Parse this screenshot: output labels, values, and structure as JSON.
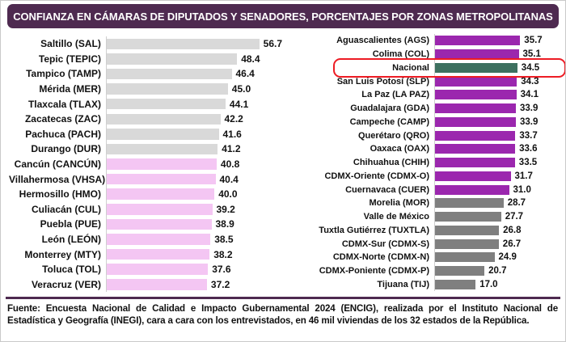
{
  "title": "CONFIANZA EN CÁMARAS DE DIPUTADOS Y SENADORES, PORCENTAJES POR ZONAS METROPOLITANAS",
  "footer": "Fuente: Encuesta Nacional de Calidad e Impacto Gubernamental 2024 (ENCIG), realizada por el Instituto Nacional de Estadística y Geografía (INEGI), cara a cara con los entrevistados, en 46 mil viviendas de los 32 estados de la República.",
  "colors": {
    "title_bg": "#4E2A50",
    "separator": "#4E2A50",
    "purple": "#9B27AE",
    "teal": "#3E705F",
    "light_gray": "#D9D9D9",
    "dark_gray": "#7F7F7F",
    "pink": "#F4C6F3",
    "highlight_red": "#ED1C24"
  },
  "chart_data": {
    "type": "bar",
    "orientation": "horizontal",
    "title": "CONFIANZA EN CÁMARAS DE DIPUTADOS Y SENADORES, PORCENTAJES POR ZONAS METROPOLITANAS",
    "value_unit": "percent",
    "xlim": [
      0,
      60
    ],
    "highlighted_category": "Nacional",
    "panels": [
      {
        "id": "left",
        "items": [
          {
            "label": "Saltillo (SAL)",
            "value": 56.7,
            "color": "light_gray"
          },
          {
            "label": "Tepic (TEPIC)",
            "value": 48.4,
            "color": "light_gray"
          },
          {
            "label": "Tampico (TAMP)",
            "value": 46.4,
            "color": "light_gray"
          },
          {
            "label": "Mérida (MER)",
            "value": 45.0,
            "color": "light_gray"
          },
          {
            "label": "Tlaxcala (TLAX)",
            "value": 44.1,
            "color": "light_gray"
          },
          {
            "label": "Zacatecas (ZAC)",
            "value": 42.2,
            "color": "light_gray"
          },
          {
            "label": "Pachuca (PACH)",
            "value": 41.6,
            "color": "light_gray"
          },
          {
            "label": "Durango (DUR)",
            "value": 41.2,
            "color": "light_gray"
          },
          {
            "label": "Cancún (CANCÚN)",
            "value": 40.8,
            "color": "pink"
          },
          {
            "label": "Villahermosa (VHSA)",
            "value": 40.4,
            "color": "pink"
          },
          {
            "label": "Hermosillo (HMO)",
            "value": 40.0,
            "color": "pink"
          },
          {
            "label": "Culiacán (CUL)",
            "value": 39.2,
            "color": "pink"
          },
          {
            "label": "Puebla (PUE)",
            "value": 38.9,
            "color": "pink"
          },
          {
            "label": "León (LEÓN)",
            "value": 38.5,
            "color": "pink"
          },
          {
            "label": "Monterrey (MTY)",
            "value": 38.2,
            "color": "pink"
          },
          {
            "label": "Toluca (TOL)",
            "value": 37.6,
            "color": "pink"
          },
          {
            "label": "Veracruz (VER)",
            "value": 37.2,
            "color": "pink"
          }
        ]
      },
      {
        "id": "right",
        "items": [
          {
            "label": "Aguascalientes (AGS)",
            "value": 35.7,
            "color": "purple"
          },
          {
            "label": "Colima (COL)",
            "value": 35.1,
            "color": "purple"
          },
          {
            "label": "Nacional",
            "value": 34.5,
            "color": "teal",
            "highlighted": true
          },
          {
            "label": "San Luis Potosí (SLP)",
            "value": 34.3,
            "color": "purple"
          },
          {
            "label": "La Paz (LA PAZ)",
            "value": 34.1,
            "color": "purple"
          },
          {
            "label": "Guadalajara (GDA)",
            "value": 33.9,
            "color": "purple"
          },
          {
            "label": "Campeche (CAMP)",
            "value": 33.9,
            "color": "purple"
          },
          {
            "label": "Querétaro (QRO)",
            "value": 33.7,
            "color": "purple"
          },
          {
            "label": "Oaxaca (OAX)",
            "value": 33.6,
            "color": "purple"
          },
          {
            "label": "Chihuahua (CHIH)",
            "value": 33.5,
            "color": "purple"
          },
          {
            "label": "CDMX-Oriente (CDMX-O)",
            "value": 31.7,
            "color": "purple"
          },
          {
            "label": "Cuernavaca (CUER)",
            "value": 31.0,
            "color": "purple"
          },
          {
            "label": "Morelia (MOR)",
            "value": 28.7,
            "color": "dark_gray"
          },
          {
            "label": "Valle de México",
            "value": 27.7,
            "color": "dark_gray"
          },
          {
            "label": "Tuxtla Gutiérrez (TUXTLA)",
            "value": 26.8,
            "color": "dark_gray"
          },
          {
            "label": "CDMX-Sur (CDMX-S)",
            "value": 26.7,
            "color": "dark_gray"
          },
          {
            "label": "CDMX-Norte (CDMX-N)",
            "value": 24.9,
            "color": "dark_gray"
          },
          {
            "label": "CDMX-Poniente (CDMX-P)",
            "value": 20.7,
            "color": "dark_gray"
          },
          {
            "label": "Tijuana (TIJ)",
            "value": 17.0,
            "color": "dark_gray"
          }
        ]
      }
    ]
  }
}
